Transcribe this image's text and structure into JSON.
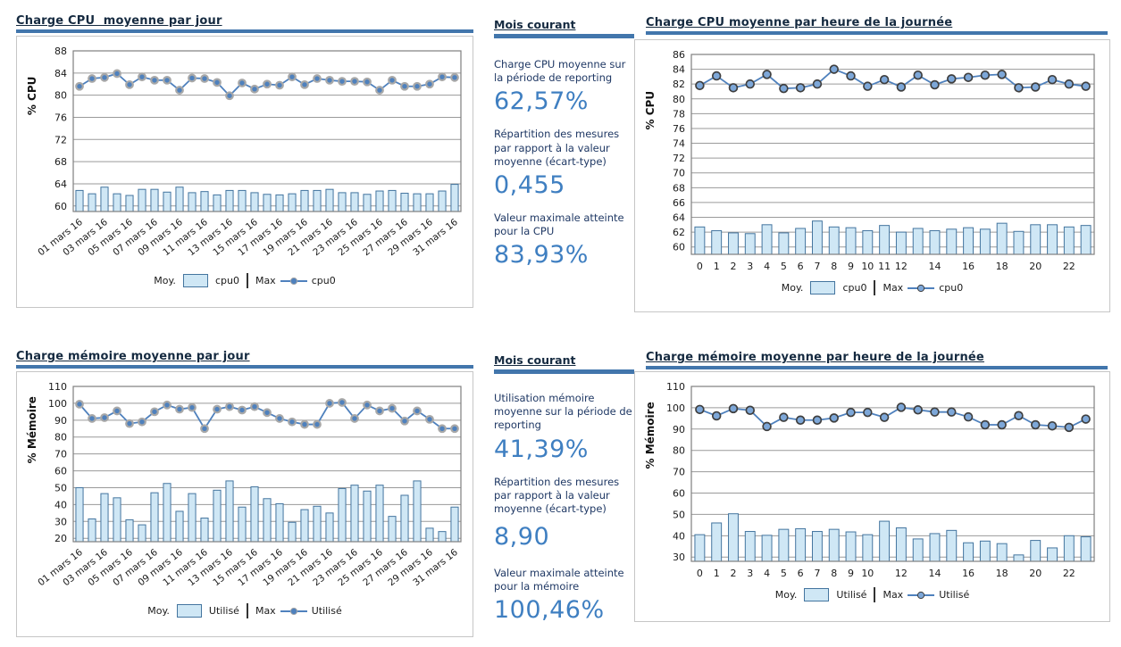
{
  "colors": {
    "accent": "#4276ac",
    "bar_fill": "#cfe7f5",
    "bar_stroke": "#44759f",
    "line": "#4f81bd",
    "grid": "#9a9a9a",
    "plot_border": "#7f7f7f",
    "tick_text": "#1a1a1a",
    "title_text": "#152a40",
    "stat_label_text": "#1f3864",
    "stat_value_text": "#3f7fc1"
  },
  "panels": [
    {
      "heading": "Mois courant",
      "stats": [
        {
          "label": "Charge CPU moyenne sur la période de reporting",
          "value": "62,57%"
        },
        {
          "label": "Répartition des mesures par rapport à la valeur moyenne (écart-type)",
          "value": "0,455"
        },
        {
          "label": "Valeur maximale atteinte pour la CPU",
          "value": "83,93%"
        }
      ]
    },
    {
      "heading": "Mois courant",
      "stats": [
        {
          "label": "Utilisation mémoire moyenne sur la période de reporting",
          "value": "41,39%"
        },
        {
          "label": "Répartition des mesures par rapport à la valeur moyenne (écart-type)",
          "value": "8,90"
        },
        {
          "label": "Valeur maximale atteinte pour la mémoire",
          "value": "100,46%"
        }
      ]
    }
  ],
  "chart_data": [
    {
      "type": "bar+line",
      "title": "Charge CPU  moyenne par jour",
      "ylabel": "% CPU",
      "ylim": [
        59,
        88
      ],
      "yticks": [
        60,
        64,
        68,
        72,
        76,
        80,
        84,
        88
      ],
      "rotate_xlabels": true,
      "legend_position": "bottom",
      "marker": {
        "fill": "#4f81bd",
        "stroke": "#a8a8a8"
      },
      "categories": [
        "01 mars 16",
        "02 mars 16",
        "03 mars 16",
        "04 mars 16",
        "05 mars 16",
        "06 mars 16",
        "07 mars 16",
        "08 mars 16",
        "09 mars 16",
        "10 mars 16",
        "11 mars 16",
        "12 mars 16",
        "13 mars 16",
        "14 mars 16",
        "15 mars 16",
        "16 mars 16",
        "17 mars 16",
        "18 mars 16",
        "19 mars 16",
        "20 mars 16",
        "21 mars 16",
        "22 mars 16",
        "23 mars 16",
        "24 mars 16",
        "25 mars 16",
        "26 mars 16",
        "27 mars 16",
        "28 mars 16",
        "29 mars 16",
        "30 mars 16",
        "31 mars 16"
      ],
      "xlabel_indices": [
        0,
        2,
        4,
        6,
        8,
        10,
        12,
        14,
        16,
        18,
        20,
        22,
        24,
        26,
        28,
        30
      ],
      "series": [
        {
          "legend": "Moy.",
          "name": "cpu0",
          "type": "bar",
          "values": [
            62.8,
            62.2,
            63.4,
            62.2,
            61.9,
            63.0,
            63.0,
            62.5,
            63.4,
            62.4,
            62.6,
            62.0,
            62.8,
            62.8,
            62.4,
            62.1,
            62.0,
            62.2,
            62.8,
            62.8,
            63.0,
            62.4,
            62.4,
            62.1,
            62.7,
            62.8,
            62.3,
            62.2,
            62.2,
            62.7,
            63.9
          ]
        },
        {
          "legend": "Max",
          "name": "cpu0",
          "type": "line",
          "values": [
            81.6,
            83.0,
            83.2,
            83.9,
            81.9,
            83.3,
            82.7,
            82.7,
            80.9,
            83.1,
            83.0,
            82.3,
            79.9,
            82.2,
            81.1,
            82.0,
            81.8,
            83.3,
            81.9,
            83.0,
            82.7,
            82.5,
            82.5,
            82.4,
            80.9,
            82.7,
            81.6,
            81.6,
            82.0,
            83.3,
            83.2
          ]
        }
      ]
    },
    {
      "type": "bar+line",
      "title": "Charge CPU moyenne par heure de la journée",
      "ylabel": "% CPU",
      "ylim": [
        59,
        86
      ],
      "yticks": [
        60,
        62,
        64,
        66,
        68,
        70,
        72,
        74,
        76,
        78,
        80,
        82,
        84,
        86
      ],
      "rotate_xlabels": false,
      "legend_position": "bottom",
      "marker": {
        "fill": "#7da7d8",
        "stroke": "#3f3f3f"
      },
      "categories": [
        "0",
        "1",
        "2",
        "3",
        "4",
        "5",
        "6",
        "7",
        "8",
        "9",
        "10",
        "11",
        "12",
        "13",
        "14",
        "15",
        "16",
        "17",
        "18",
        "19",
        "20",
        "21",
        "22",
        "23"
      ],
      "xlabel_indices": [
        0,
        1,
        2,
        3,
        4,
        5,
        6,
        7,
        8,
        9,
        10,
        11,
        12,
        14,
        16,
        18,
        20,
        22
      ],
      "series": [
        {
          "legend": "Moy.",
          "name": "cpu0",
          "type": "bar",
          "values": [
            62.7,
            62.2,
            61.9,
            61.8,
            63.0,
            61.9,
            62.5,
            63.5,
            62.7,
            62.6,
            62.2,
            62.9,
            62.0,
            62.5,
            62.2,
            62.4,
            62.6,
            62.4,
            63.2,
            62.1,
            63.0,
            63.0,
            62.7,
            62.9
          ]
        },
        {
          "legend": "Max",
          "name": "cpu0",
          "type": "line",
          "values": [
            81.8,
            83.1,
            81.5,
            82.0,
            83.3,
            81.4,
            81.5,
            82.0,
            84.0,
            83.1,
            81.7,
            82.6,
            81.6,
            83.2,
            81.9,
            82.7,
            82.9,
            83.2,
            83.3,
            81.5,
            81.6,
            82.6,
            82.0,
            81.7
          ]
        }
      ]
    },
    {
      "type": "bar+line",
      "title": "Charge mémoire moyenne par jour",
      "ylabel": "% Mémoire",
      "ylim": [
        18,
        110
      ],
      "yticks": [
        20,
        30,
        40,
        50,
        60,
        70,
        80,
        90,
        100,
        110
      ],
      "rotate_xlabels": true,
      "legend_position": "bottom",
      "marker": {
        "fill": "#4f81bd",
        "stroke": "#a8a8a8"
      },
      "categories": [
        "01 mars 16",
        "02 mars 16",
        "03 mars 16",
        "04 mars 16",
        "05 mars 16",
        "06 mars 16",
        "07 mars 16",
        "08 mars 16",
        "09 mars 16",
        "10 mars 16",
        "11 mars 16",
        "12 mars 16",
        "13 mars 16",
        "14 mars 16",
        "15 mars 16",
        "16 mars 16",
        "17 mars 16",
        "18 mars 16",
        "19 mars 16",
        "20 mars 16",
        "21 mars 16",
        "22 mars 16",
        "23 mars 16",
        "24 mars 16",
        "25 mars 16",
        "26 mars 16",
        "27 mars 16",
        "28 mars 16",
        "29 mars 16",
        "30 mars 16",
        "31 mars 16"
      ],
      "xlabel_indices": [
        0,
        2,
        4,
        6,
        8,
        10,
        12,
        14,
        16,
        18,
        20,
        22,
        24,
        26,
        28,
        30
      ],
      "series": [
        {
          "legend": "Moy.",
          "name": "Utilisé",
          "type": "bar",
          "values": [
            50,
            31.5,
            46.5,
            44,
            31,
            28,
            47,
            52.5,
            36,
            46.5,
            32,
            48.5,
            54,
            38.5,
            50.5,
            43.5,
            40.5,
            29.5,
            37,
            39,
            35,
            49.5,
            51.5,
            48,
            51.5,
            33,
            45.5,
            54,
            26,
            24,
            38.5
          ]
        },
        {
          "legend": "Max",
          "name": "Utilisé",
          "type": "line",
          "values": [
            99.5,
            91,
            91.5,
            95.5,
            88,
            89,
            95,
            99,
            96.5,
            97.5,
            85,
            96.5,
            98,
            96,
            98,
            94.5,
            91,
            89,
            87.5,
            87.5,
            100,
            100.5,
            91,
            99,
            95.5,
            97,
            89.5,
            95.5,
            90.5,
            85,
            85
          ]
        }
      ]
    },
    {
      "type": "bar+line",
      "title": "Charge mémoire moyenne par heure de la journée",
      "ylabel": "% Mémoire",
      "ylim": [
        28,
        110
      ],
      "yticks": [
        30,
        40,
        50,
        60,
        70,
        80,
        90,
        100,
        110
      ],
      "rotate_xlabels": false,
      "legend_position": "bottom",
      "marker": {
        "fill": "#7da7d8",
        "stroke": "#3f3f3f"
      },
      "categories": [
        "0",
        "1",
        "2",
        "3",
        "4",
        "5",
        "6",
        "7",
        "8",
        "9",
        "10",
        "11",
        "12",
        "13",
        "14",
        "15",
        "16",
        "17",
        "18",
        "19",
        "20",
        "21",
        "22",
        "23"
      ],
      "xlabel_indices": [
        0,
        1,
        2,
        3,
        4,
        5,
        6,
        7,
        8,
        9,
        10,
        12,
        14,
        16,
        18,
        20,
        22
      ],
      "series": [
        {
          "legend": "Moy.",
          "name": "Utilisé",
          "type": "bar",
          "values": [
            40.5,
            46,
            50.3,
            42,
            40.2,
            43,
            43.3,
            42,
            43,
            41.8,
            40.5,
            46.8,
            43.7,
            38.5,
            41,
            42.5,
            36.7,
            37.5,
            36.3,
            31,
            37.8,
            34.3,
            40,
            39.5
          ]
        },
        {
          "legend": "Max",
          "name": "Utilisé",
          "type": "line",
          "values": [
            99.2,
            96.2,
            99.6,
            98.8,
            91.2,
            95.5,
            94.2,
            94.2,
            95.2,
            97.8,
            97.8,
            95.5,
            100.2,
            99,
            98,
            98,
            95.7,
            92,
            92,
            96.3,
            92,
            91.5,
            90.8,
            94.7
          ]
        }
      ]
    }
  ]
}
